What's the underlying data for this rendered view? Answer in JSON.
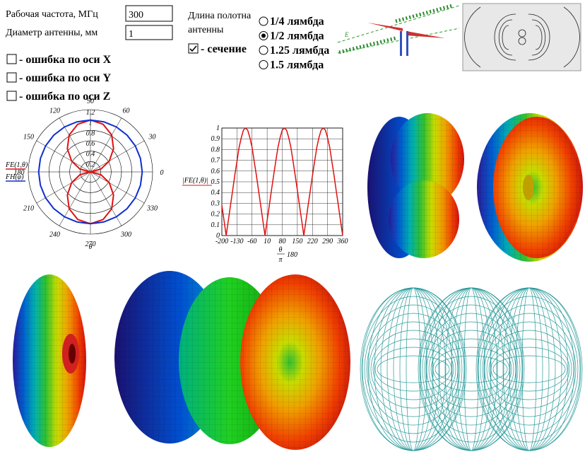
{
  "form": {
    "frequency": {
      "label": "Рабочая частота, МГц",
      "value": "300"
    },
    "diameter": {
      "label": "Диаметр антенны, мм",
      "value": "1"
    },
    "errors": [
      {
        "label": "- ошибка по оси X",
        "checked": false
      },
      {
        "label": "- ошибка по оси Y",
        "checked": false
      },
      {
        "label": "- ошибка по оси Z",
        "checked": false
      }
    ],
    "length": {
      "label_line1": "Длина полотна",
      "label_line2": "антенны",
      "options": [
        "1/4 лямбда",
        "1/2 лямбда",
        "1.25 лямбда",
        "1.5 лямбда"
      ],
      "selected": 1
    },
    "section": {
      "label": "- сечение",
      "checked": true
    }
  },
  "polar_plot": {
    "type": "polar",
    "theta": [
      0,
      15,
      30,
      45,
      60,
      75,
      90,
      105,
      120,
      135,
      150,
      165,
      180,
      195,
      210,
      225,
      240,
      255,
      270,
      285,
      300,
      315,
      330,
      345,
      360
    ],
    "series": [
      {
        "name": "FE(1,θ)",
        "color": "#e01010",
        "values": [
          0,
          0.21,
          0.42,
          0.63,
          0.82,
          0.95,
          1,
          0.95,
          0.82,
          0.63,
          0.42,
          0.21,
          0,
          0.21,
          0.42,
          0.63,
          0.82,
          0.95,
          1,
          0.95,
          0.82,
          0.63,
          0.42,
          0.21,
          0
        ]
      },
      {
        "name": "FH(φ)",
        "color": "#1030d0",
        "values": [
          1,
          1,
          1,
          1,
          1,
          1,
          1,
          1,
          1,
          1,
          1,
          1,
          1,
          1,
          1,
          1,
          1,
          1,
          1,
          1,
          1,
          1,
          1,
          1,
          1
        ]
      }
    ],
    "rlim": [
      0,
      1.2
    ],
    "rticks": [
      0.2,
      0.4,
      0.6,
      0.8,
      1,
      1.2
    ],
    "angle_ticks": [
      0,
      30,
      60,
      90,
      120,
      150,
      180,
      210,
      240,
      270,
      300,
      330
    ],
    "x_label": "θ"
  },
  "line_plot": {
    "type": "line",
    "x": [
      -200,
      -190,
      -180,
      -170,
      -160,
      -150,
      -140,
      -130,
      -120,
      -110,
      -100,
      -90,
      -80,
      -70,
      -60,
      -50,
      -40,
      -30,
      -20,
      -10,
      0,
      10,
      20,
      30,
      40,
      50,
      60,
      70,
      80,
      90,
      100,
      110,
      120,
      130,
      140,
      150,
      160,
      170,
      180,
      190,
      200,
      210,
      220,
      230,
      240,
      250,
      260,
      270,
      280,
      290,
      300,
      310,
      320,
      330,
      340,
      350,
      360
    ],
    "values": [
      0.28,
      0.14,
      0,
      0.14,
      0.28,
      0.42,
      0.56,
      0.69,
      0.82,
      0.91,
      0.98,
      1,
      0.98,
      0.91,
      0.82,
      0.69,
      0.56,
      0.42,
      0.28,
      0.14,
      0,
      0.14,
      0.28,
      0.42,
      0.56,
      0.69,
      0.82,
      0.91,
      0.98,
      1,
      0.98,
      0.91,
      0.82,
      0.69,
      0.56,
      0.42,
      0.28,
      0.14,
      0,
      0.14,
      0.28,
      0.42,
      0.56,
      0.69,
      0.82,
      0.91,
      0.98,
      1,
      0.98,
      0.91,
      0.82,
      0.69,
      0.56,
      0.42,
      0.28,
      0.14,
      0
    ],
    "color": "#e01010",
    "xlim": [
      -200,
      360
    ],
    "ylim": [
      0,
      1
    ],
    "xticks": [
      -200,
      -130,
      -60,
      10,
      80,
      150,
      220,
      290,
      360
    ],
    "yticks": [
      0,
      0.1,
      0.2,
      0.3,
      0.4,
      0.5,
      0.6,
      0.7,
      0.8,
      0.9,
      1
    ],
    "grid": true,
    "y_label": "|FE(1,θ)|",
    "x_label": {
      "numerator": "θ",
      "denominator": "π",
      "factor": "180"
    }
  }
}
